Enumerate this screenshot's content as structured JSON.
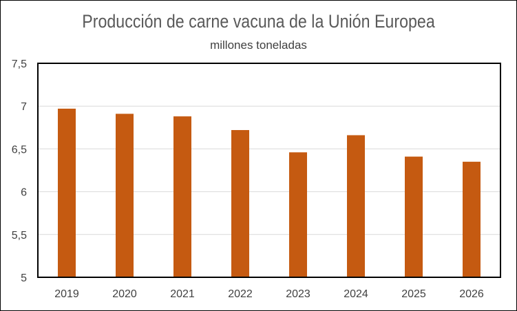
{
  "chart_data": {
    "type": "bar",
    "title": "Producción de carne vacuna de la Unión Europea",
    "subtitle": "millones toneladas",
    "xlabel": "",
    "ylabel": "",
    "categories": [
      "2019",
      "2020",
      "2021",
      "2022",
      "2023",
      "2024",
      "2025",
      "2026"
    ],
    "values": [
      6.97,
      6.91,
      6.88,
      6.72,
      6.46,
      6.66,
      6.41,
      6.35
    ],
    "ylim": [
      5,
      7.5
    ],
    "yticks": [
      5,
      5.5,
      6,
      6.5,
      7,
      7.5
    ],
    "ytick_labels": [
      "5",
      "5,5",
      "6",
      "6,5",
      "7",
      "7,5"
    ],
    "grid": true,
    "legend": "none",
    "colors": {
      "bar": "#C55A11",
      "gridline": "#D9D9D9",
      "plot_border": "#000000"
    }
  }
}
